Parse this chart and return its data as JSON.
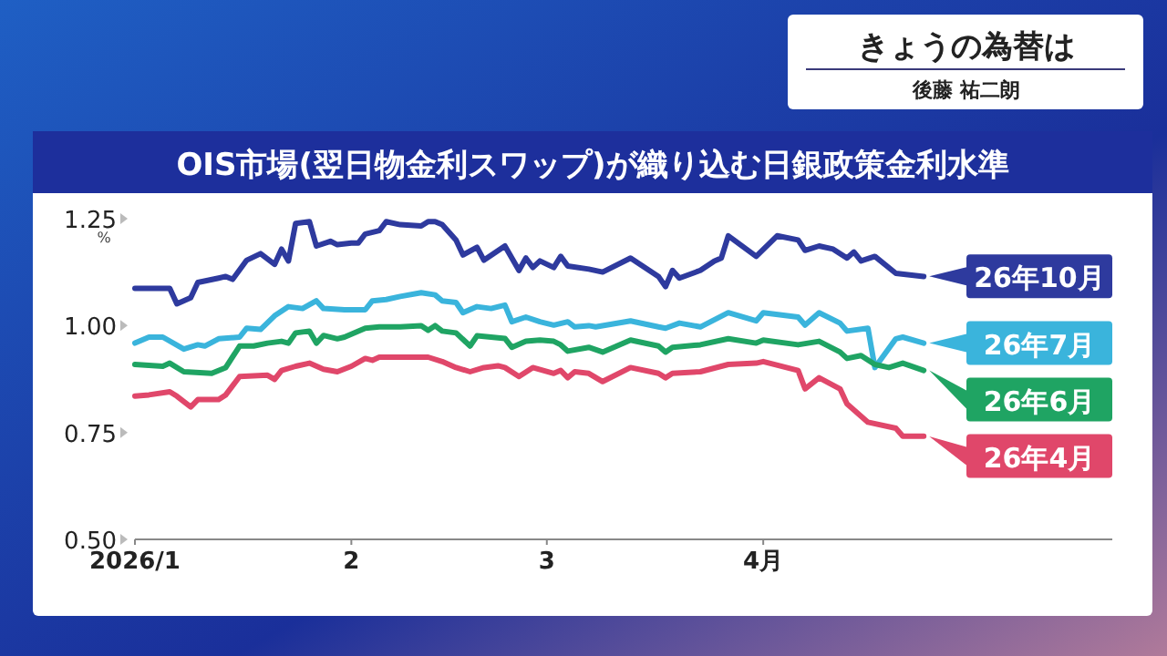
{
  "chart_data": {
    "type": "line",
    "title": "OIS市場(翌日物金利スワップ)が織り込む日銀政策金利水準",
    "ylabel": "%",
    "annotations": [
      "きょうの為替は",
      "後藤 祐二朗"
    ],
    "xlim": [
      "2026-01-01",
      "2026-05-21"
    ],
    "xticks": [
      {
        "value": "2026-01-01",
        "label": "2026/1"
      },
      {
        "value": "2026-02-01",
        "label": "2"
      },
      {
        "value": "2026-03-01",
        "label": "3"
      },
      {
        "value": "2026-04-01",
        "label": "4月"
      }
    ],
    "ylim": [
      0.5,
      1.25
    ],
    "yticks": [
      {
        "value": 0.5,
        "label": "0.50"
      },
      {
        "value": 0.75,
        "label": "0.75"
      },
      {
        "value": 1.0,
        "label": "1.00"
      },
      {
        "value": 1.25,
        "label": "1.25"
      }
    ],
    "grid": false,
    "legend": "right",
    "marker": "none",
    "line_style": "solid",
    "series": [
      {
        "name": "26年10月",
        "color": "#2e3a9e",
        "x": [
          "2026-01-01",
          "2026-01-06",
          "2026-01-07",
          "2026-01-09",
          "2026-01-10",
          "2026-01-13",
          "2026-01-14",
          "2026-01-15",
          "2026-01-17",
          "2026-01-19",
          "2026-01-21",
          "2026-01-22",
          "2026-01-23",
          "2026-01-24",
          "2026-01-26",
          "2026-01-27",
          "2026-01-29",
          "2026-01-30",
          "2026-02-01",
          "2026-02-02",
          "2026-02-03",
          "2026-02-05",
          "2026-02-06",
          "2026-02-08",
          "2026-02-11",
          "2026-02-12",
          "2026-02-13",
          "2026-02-14",
          "2026-02-16",
          "2026-02-17",
          "2026-02-19",
          "2026-02-20",
          "2026-02-23",
          "2026-02-25",
          "2026-02-26",
          "2026-02-27",
          "2026-02-28",
          "2026-03-02",
          "2026-03-03",
          "2026-03-04",
          "2026-03-07",
          "2026-03-09",
          "2026-03-13",
          "2026-03-17",
          "2026-03-18",
          "2026-03-19",
          "2026-03-20",
          "2026-03-23",
          "2026-03-25",
          "2026-03-26",
          "2026-03-27",
          "2026-03-31",
          "2026-04-03",
          "2026-04-06",
          "2026-04-07",
          "2026-04-09",
          "2026-04-11",
          "2026-04-13",
          "2026-04-14",
          "2026-04-15",
          "2026-04-17",
          "2026-04-20",
          "2026-04-24"
        ],
        "values": [
          1.087,
          1.087,
          1.051,
          1.065,
          1.101,
          1.111,
          1.115,
          1.108,
          1.153,
          1.168,
          1.143,
          1.179,
          1.151,
          1.239,
          1.243,
          1.186,
          1.197,
          1.189,
          1.193,
          1.193,
          1.214,
          1.222,
          1.243,
          1.236,
          1.233,
          1.243,
          1.243,
          1.236,
          1.2,
          1.165,
          1.183,
          1.153,
          1.186,
          1.129,
          1.158,
          1.136,
          1.151,
          1.136,
          1.162,
          1.139,
          1.132,
          1.125,
          1.158,
          1.115,
          1.091,
          1.129,
          1.111,
          1.129,
          1.151,
          1.158,
          1.21,
          1.162,
          1.21,
          1.2,
          1.176,
          1.186,
          1.179,
          1.158,
          1.172,
          1.151,
          1.162,
          1.122,
          1.115
        ]
      },
      {
        "name": "26年7月",
        "color": "#3ab4dc",
        "x": [
          "2026-01-01",
          "2026-01-03",
          "2026-01-05",
          "2026-01-08",
          "2026-01-10",
          "2026-01-11",
          "2026-01-13",
          "2026-01-16",
          "2026-01-17",
          "2026-01-19",
          "2026-01-21",
          "2026-01-23",
          "2026-01-25",
          "2026-01-27",
          "2026-01-28",
          "2026-01-31",
          "2026-02-03",
          "2026-02-04",
          "2026-02-06",
          "2026-02-08",
          "2026-02-11",
          "2026-02-13",
          "2026-02-14",
          "2026-02-16",
          "2026-02-17",
          "2026-02-19",
          "2026-02-21",
          "2026-02-23",
          "2026-02-24",
          "2026-02-26",
          "2026-02-28",
          "2026-03-02",
          "2026-03-04",
          "2026-03-05",
          "2026-03-07",
          "2026-03-08",
          "2026-03-13",
          "2026-03-17",
          "2026-03-18",
          "2026-03-20",
          "2026-03-23",
          "2026-03-27",
          "2026-03-31",
          "2026-04-01",
          "2026-04-06",
          "2026-04-07",
          "2026-04-09",
          "2026-04-12",
          "2026-04-13",
          "2026-04-16",
          "2026-04-17",
          "2026-04-20",
          "2026-04-21",
          "2026-04-24"
        ],
        "values": [
          0.959,
          0.973,
          0.973,
          0.945,
          0.955,
          0.952,
          0.969,
          0.973,
          0.994,
          0.991,
          1.023,
          1.044,
          1.04,
          1.058,
          1.04,
          1.037,
          1.037,
          1.058,
          1.061,
          1.068,
          1.077,
          1.072,
          1.058,
          1.054,
          1.03,
          1.044,
          1.04,
          1.048,
          1.009,
          1.02,
          1.009,
          1.001,
          1.009,
          0.997,
          1.0,
          0.997,
          1.011,
          0.997,
          0.994,
          1.006,
          0.997,
          1.03,
          1.011,
          1.03,
          1.02,
          1.001,
          1.03,
          1.006,
          0.987,
          0.994,
          0.902,
          0.969,
          0.973,
          0.959
        ]
      },
      {
        "name": "26年6月",
        "color": "#1fa463",
        "x": [
          "2026-01-01",
          "2026-01-05",
          "2026-01-06",
          "2026-01-08",
          "2026-01-12",
          "2026-01-14",
          "2026-01-16",
          "2026-01-18",
          "2026-01-20",
          "2026-01-22",
          "2026-01-23",
          "2026-01-24",
          "2026-01-26",
          "2026-01-27",
          "2026-01-28",
          "2026-01-30",
          "2026-01-31",
          "2026-02-03",
          "2026-02-05",
          "2026-02-08",
          "2026-02-11",
          "2026-02-12",
          "2026-02-13",
          "2026-02-14",
          "2026-02-16",
          "2026-02-18",
          "2026-02-19",
          "2026-02-21",
          "2026-02-23",
          "2026-02-24",
          "2026-02-26",
          "2026-02-28",
          "2026-03-02",
          "2026-03-03",
          "2026-03-04",
          "2026-03-07",
          "2026-03-09",
          "2026-03-13",
          "2026-03-17",
          "2026-03-18",
          "2026-03-19",
          "2026-03-23",
          "2026-03-27",
          "2026-03-31",
          "2026-04-01",
          "2026-04-06",
          "2026-04-09",
          "2026-04-12",
          "2026-04-13",
          "2026-04-15",
          "2026-04-17",
          "2026-04-19",
          "2026-04-21",
          "2026-04-24"
        ],
        "values": [
          0.909,
          0.905,
          0.912,
          0.892,
          0.888,
          0.902,
          0.952,
          0.952,
          0.959,
          0.963,
          0.959,
          0.983,
          0.987,
          0.959,
          0.977,
          0.969,
          0.973,
          0.994,
          0.997,
          0.997,
          1.0,
          0.989,
          1.0,
          0.987,
          0.983,
          0.952,
          0.976,
          0.973,
          0.97,
          0.949,
          0.963,
          0.966,
          0.963,
          0.955,
          0.94,
          0.949,
          0.938,
          0.966,
          0.952,
          0.938,
          0.949,
          0.955,
          0.969,
          0.959,
          0.966,
          0.955,
          0.963,
          0.938,
          0.923,
          0.93,
          0.909,
          0.902,
          0.912,
          0.895
        ]
      },
      {
        "name": "26年4月",
        "color": "#e0476a",
        "x": [
          "2026-01-01",
          "2026-01-03",
          "2026-01-06",
          "2026-01-07",
          "2026-01-09",
          "2026-01-10",
          "2026-01-13",
          "2026-01-14",
          "2026-01-16",
          "2026-01-20",
          "2026-01-21",
          "2026-01-22",
          "2026-01-24",
          "2026-01-26",
          "2026-01-28",
          "2026-01-30",
          "2026-02-01",
          "2026-02-03",
          "2026-02-04",
          "2026-02-05",
          "2026-02-08",
          "2026-02-12",
          "2026-02-14",
          "2026-02-16",
          "2026-02-18",
          "2026-02-20",
          "2026-02-22",
          "2026-02-23",
          "2026-02-25",
          "2026-02-27",
          "2026-03-02",
          "2026-03-03",
          "2026-03-04",
          "2026-03-05",
          "2026-03-07",
          "2026-03-09",
          "2026-03-13",
          "2026-03-17",
          "2026-03-18",
          "2026-03-19",
          "2026-03-23",
          "2026-03-27",
          "2026-03-31",
          "2026-04-01",
          "2026-04-06",
          "2026-04-07",
          "2026-04-09",
          "2026-04-12",
          "2026-04-13",
          "2026-04-16",
          "2026-04-20",
          "2026-04-21",
          "2026-04-24"
        ],
        "values": [
          0.835,
          0.838,
          0.845,
          0.835,
          0.81,
          0.827,
          0.827,
          0.838,
          0.881,
          0.884,
          0.874,
          0.895,
          0.905,
          0.912,
          0.898,
          0.892,
          0.905,
          0.923,
          0.919,
          0.926,
          0.926,
          0.926,
          0.916,
          0.902,
          0.892,
          0.902,
          0.906,
          0.902,
          0.881,
          0.902,
          0.888,
          0.895,
          0.878,
          0.892,
          0.888,
          0.869,
          0.902,
          0.888,
          0.878,
          0.888,
          0.892,
          0.909,
          0.912,
          0.916,
          0.895,
          0.852,
          0.878,
          0.852,
          0.817,
          0.774,
          0.76,
          0.741,
          0.741
        ]
      }
    ]
  }
}
